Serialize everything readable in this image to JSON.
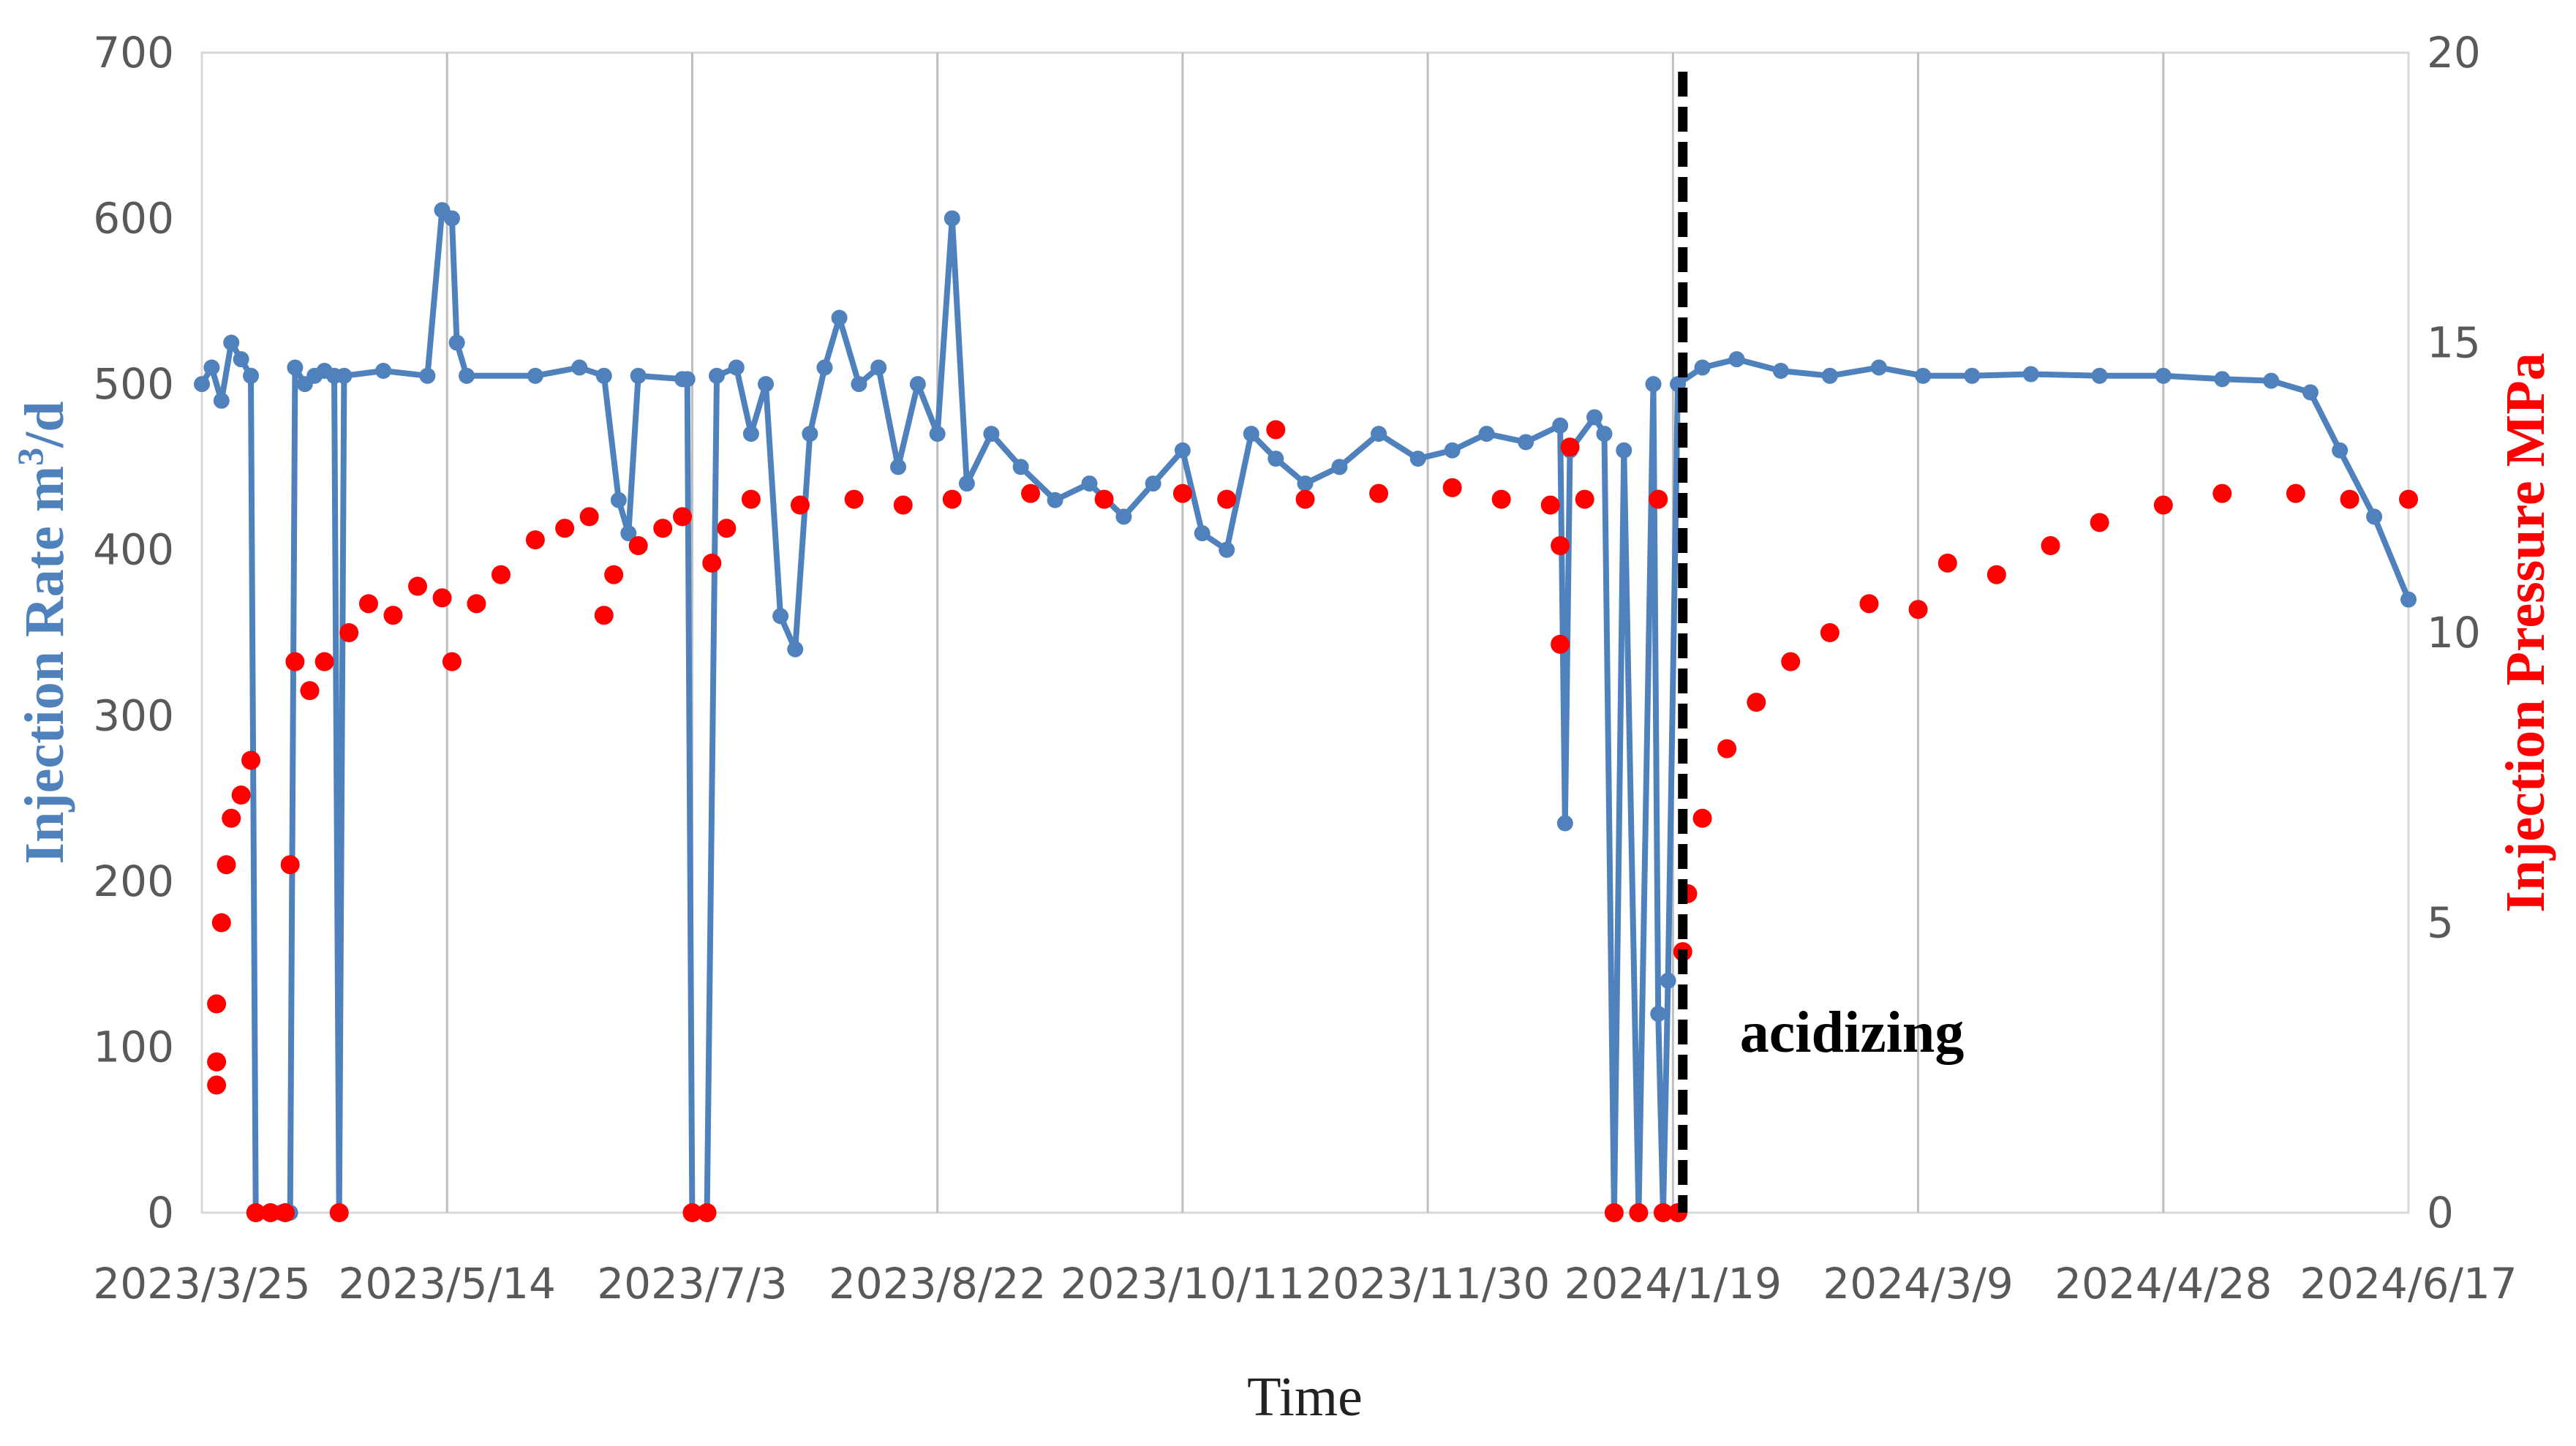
{
  "chart_data": {
    "type": "line",
    "xlabel": "Time",
    "ylabel": "Injection Rate m",
    "ylabel_sup": "3",
    "ylabel_suffix": "/d",
    "y2label": "Injection Pressure MPa",
    "xlim": [
      "2023-03-25",
      "2024-06-17"
    ],
    "ylim": [
      0,
      700
    ],
    "y2lim": [
      0,
      20
    ],
    "x_ticks": [
      "2023/3/25",
      "2023/5/14",
      "2023/7/3",
      "2023/8/22",
      "2023/10/11",
      "2023/11/30",
      "2024/1/19",
      "2024/3/9",
      "2024/4/28",
      "2024/6/17"
    ],
    "y_ticks": [
      "0",
      "100",
      "200",
      "300",
      "400",
      "500",
      "600",
      "700"
    ],
    "y2_ticks": [
      "0",
      "5",
      "10",
      "15",
      "20"
    ],
    "grid": "vertical",
    "annotations": [
      {
        "text": "acidizing",
        "x": "2024-01-21",
        "line_style": "dashed-vertical"
      }
    ],
    "colors": {
      "rate": "#4f81bd",
      "pressure": "#ff0000",
      "marker": "#000000"
    },
    "series": [
      {
        "axis": "left",
        "style": "line-markers",
        "points": [
          [
            "2023-03-25",
            500
          ],
          [
            "2023-03-27",
            510
          ],
          [
            "2023-03-29",
            490
          ],
          [
            "2023-03-31",
            525
          ],
          [
            "2023-04-02",
            515
          ],
          [
            "2023-04-04",
            505
          ],
          [
            "2023-04-05",
            0
          ],
          [
            "2023-04-10",
            0
          ],
          [
            "2023-04-12",
            0
          ],
          [
            "2023-04-13",
            510
          ],
          [
            "2023-04-15",
            500
          ],
          [
            "2023-04-17",
            505
          ],
          [
            "2023-04-19",
            508
          ],
          [
            "2023-04-21",
            505
          ],
          [
            "2023-04-22",
            0
          ],
          [
            "2023-04-23",
            505
          ],
          [
            "2023-05-01",
            508
          ],
          [
            "2023-05-10",
            505
          ],
          [
            "2023-05-13",
            605
          ],
          [
            "2023-05-15",
            600
          ],
          [
            "2023-05-16",
            525
          ],
          [
            "2023-05-18",
            505
          ],
          [
            "2023-06-01",
            505
          ],
          [
            "2023-06-10",
            510
          ],
          [
            "2023-06-15",
            505
          ],
          [
            "2023-06-18",
            430
          ],
          [
            "2023-06-20",
            410
          ],
          [
            "2023-06-22",
            505
          ],
          [
            "2023-07-01",
            503
          ],
          [
            "2023-07-02",
            503
          ],
          [
            "2023-07-03",
            0
          ],
          [
            "2023-07-06",
            0
          ],
          [
            "2023-07-08",
            505
          ],
          [
            "2023-07-12",
            510
          ],
          [
            "2023-07-15",
            470
          ],
          [
            "2023-07-18",
            500
          ],
          [
            "2023-07-21",
            360
          ],
          [
            "2023-07-24",
            340
          ],
          [
            "2023-07-27",
            470
          ],
          [
            "2023-07-30",
            510
          ],
          [
            "2023-08-02",
            540
          ],
          [
            "2023-08-06",
            500
          ],
          [
            "2023-08-10",
            510
          ],
          [
            "2023-08-14",
            450
          ],
          [
            "2023-08-18",
            500
          ],
          [
            "2023-08-22",
            470
          ],
          [
            "2023-08-25",
            600
          ],
          [
            "2023-08-28",
            440
          ],
          [
            "2023-09-02",
            470
          ],
          [
            "2023-09-08",
            450
          ],
          [
            "2023-09-15",
            430
          ],
          [
            "2023-09-22",
            440
          ],
          [
            "2023-09-29",
            420
          ],
          [
            "2023-10-05",
            440
          ],
          [
            "2023-10-11",
            460
          ],
          [
            "2023-10-15",
            410
          ],
          [
            "2023-10-20",
            400
          ],
          [
            "2023-10-25",
            470
          ],
          [
            "2023-10-30",
            455
          ],
          [
            "2023-11-05",
            440
          ],
          [
            "2023-11-12",
            450
          ],
          [
            "2023-11-20",
            470
          ],
          [
            "2023-11-28",
            455
          ],
          [
            "2023-12-05",
            460
          ],
          [
            "2023-12-12",
            470
          ],
          [
            "2023-12-20",
            465
          ],
          [
            "2023-12-27",
            475
          ],
          [
            "2023-12-28",
            235
          ],
          [
            "2023-12-29",
            460
          ],
          [
            "2024-01-03",
            480
          ],
          [
            "2024-01-05",
            470
          ],
          [
            "2024-01-07",
            0
          ],
          [
            "2024-01-09",
            460
          ],
          [
            "2024-01-12",
            0
          ],
          [
            "2024-01-15",
            500
          ],
          [
            "2024-01-16",
            120
          ],
          [
            "2024-01-17",
            0
          ],
          [
            "2024-01-18",
            140
          ],
          [
            "2024-01-20",
            500
          ],
          [
            "2024-01-25",
            510
          ],
          [
            "2024-02-01",
            515
          ],
          [
            "2024-02-10",
            508
          ],
          [
            "2024-02-20",
            505
          ],
          [
            "2024-03-01",
            510
          ],
          [
            "2024-03-10",
            505
          ],
          [
            "2024-03-20",
            505
          ],
          [
            "2024-04-01",
            506
          ],
          [
            "2024-04-15",
            505
          ],
          [
            "2024-04-28",
            505
          ],
          [
            "2024-05-10",
            503
          ],
          [
            "2024-05-20",
            502
          ],
          [
            "2024-05-28",
            495
          ],
          [
            "2024-06-03",
            460
          ],
          [
            "2024-06-10",
            420
          ],
          [
            "2024-06-17",
            370
          ]
        ]
      },
      {
        "axis": "right",
        "style": "markers",
        "points": [
          [
            "2023-03-28",
            2.2
          ],
          [
            "2023-03-28",
            2.6
          ],
          [
            "2023-03-28",
            3.6
          ],
          [
            "2023-03-29",
            5.0
          ],
          [
            "2023-03-30",
            6.0
          ],
          [
            "2023-03-31",
            6.8
          ],
          [
            "2023-04-02",
            7.2
          ],
          [
            "2023-04-04",
            7.8
          ],
          [
            "2023-04-05",
            0
          ],
          [
            "2023-04-08",
            0
          ],
          [
            "2023-04-11",
            0
          ],
          [
            "2023-04-12",
            6.0
          ],
          [
            "2023-04-13",
            9.5
          ],
          [
            "2023-04-16",
            9.0
          ],
          [
            "2023-04-19",
            9.5
          ],
          [
            "2023-04-22",
            0
          ],
          [
            "2023-04-24",
            10.0
          ],
          [
            "2023-04-28",
            10.5
          ],
          [
            "2023-05-03",
            10.3
          ],
          [
            "2023-05-08",
            10.8
          ],
          [
            "2023-05-13",
            10.6
          ],
          [
            "2023-05-15",
            9.5
          ],
          [
            "2023-05-20",
            10.5
          ],
          [
            "2023-05-25",
            11.0
          ],
          [
            "2023-06-01",
            11.6
          ],
          [
            "2023-06-07",
            11.8
          ],
          [
            "2023-06-12",
            12.0
          ],
          [
            "2023-06-15",
            10.3
          ],
          [
            "2023-06-17",
            11.0
          ],
          [
            "2023-06-22",
            11.5
          ],
          [
            "2023-06-27",
            11.8
          ],
          [
            "2023-07-01",
            12.0
          ],
          [
            "2023-07-03",
            0
          ],
          [
            "2023-07-06",
            0
          ],
          [
            "2023-07-07",
            11.2
          ],
          [
            "2023-07-10",
            11.8
          ],
          [
            "2023-07-15",
            12.3
          ],
          [
            "2023-07-25",
            12.2
          ],
          [
            "2023-08-05",
            12.3
          ],
          [
            "2023-08-15",
            12.2
          ],
          [
            "2023-08-25",
            12.3
          ],
          [
            "2023-09-10",
            12.4
          ],
          [
            "2023-09-25",
            12.3
          ],
          [
            "2023-10-11",
            12.4
          ],
          [
            "2023-10-20",
            12.3
          ],
          [
            "2023-10-30",
            13.5
          ],
          [
            "2023-11-05",
            12.3
          ],
          [
            "2023-11-20",
            12.4
          ],
          [
            "2023-12-05",
            12.5
          ],
          [
            "2023-12-15",
            12.3
          ],
          [
            "2023-12-25",
            12.2
          ],
          [
            "2023-12-27",
            11.5
          ],
          [
            "2023-12-27",
            9.8
          ],
          [
            "2023-12-29",
            13.2
          ],
          [
            "2024-01-01",
            12.3
          ],
          [
            "2024-01-07",
            0
          ],
          [
            "2024-01-12",
            0
          ],
          [
            "2024-01-16",
            12.3
          ],
          [
            "2024-01-17",
            0
          ],
          [
            "2024-01-20",
            0
          ],
          [
            "2024-01-21",
            4.5
          ],
          [
            "2024-01-22",
            5.5
          ],
          [
            "2024-01-25",
            6.8
          ],
          [
            "2024-01-30",
            8.0
          ],
          [
            "2024-02-05",
            8.8
          ],
          [
            "2024-02-12",
            9.5
          ],
          [
            "2024-02-20",
            10.0
          ],
          [
            "2024-02-28",
            10.5
          ],
          [
            "2024-03-09",
            10.4
          ],
          [
            "2024-03-15",
            11.2
          ],
          [
            "2024-03-25",
            11.0
          ],
          [
            "2024-04-05",
            11.5
          ],
          [
            "2024-04-15",
            11.9
          ],
          [
            "2024-04-28",
            12.2
          ],
          [
            "2024-05-10",
            12.4
          ],
          [
            "2024-05-25",
            12.4
          ],
          [
            "2024-06-05",
            12.3
          ],
          [
            "2024-06-17",
            12.3
          ]
        ]
      }
    ]
  }
}
